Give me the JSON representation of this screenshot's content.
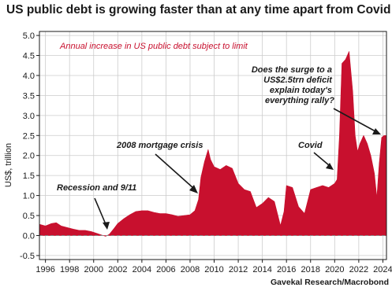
{
  "title": "US public debt is growing faster than at any time apart from Covid",
  "source": "Gavekal Research/Macrobond",
  "chart_data": {
    "type": "area",
    "subtitle": "Annual increase in US public debt subject to limit",
    "ylabel": "US$, trillion",
    "xlabel": "",
    "xlim": [
      1995.5,
      2024.3
    ],
    "ylim": [
      -0.6,
      5.1
    ],
    "yticks": [
      "-0.5",
      "0.0",
      "0.5",
      "1.0",
      "1.5",
      "2.0",
      "2.5",
      "3.0",
      "3.5",
      "4.0",
      "4.5",
      "5.0"
    ],
    "xticks": [
      "1996",
      "1998",
      "2000",
      "2002",
      "2004",
      "2006",
      "2008",
      "2010",
      "2012",
      "2014",
      "2016",
      "2018",
      "2020",
      "2022",
      "2024"
    ],
    "grid": true,
    "colors": {
      "fill": "#c8102e",
      "axis": "#1a1a1a",
      "grid": "#cccccc",
      "zero_line": "#888888"
    },
    "series": [
      {
        "values": [
          [
            1995.5,
            0.28
          ],
          [
            1996.0,
            0.24
          ],
          [
            1996.5,
            0.3
          ],
          [
            1996.9,
            0.32
          ],
          [
            1997.3,
            0.24
          ],
          [
            1997.8,
            0.2
          ],
          [
            1998.3,
            0.16
          ],
          [
            1998.8,
            0.13
          ],
          [
            1999.3,
            0.13
          ],
          [
            1999.8,
            0.1
          ],
          [
            2000.3,
            0.05
          ],
          [
            2000.7,
            0.01
          ],
          [
            2001.0,
            -0.02
          ],
          [
            2001.3,
            0.03
          ],
          [
            2001.7,
            0.18
          ],
          [
            2002.0,
            0.3
          ],
          [
            2002.5,
            0.42
          ],
          [
            2003.0,
            0.52
          ],
          [
            2003.5,
            0.6
          ],
          [
            2004.0,
            0.62
          ],
          [
            2004.5,
            0.62
          ],
          [
            2005.0,
            0.58
          ],
          [
            2005.5,
            0.55
          ],
          [
            2006.0,
            0.55
          ],
          [
            2006.5,
            0.52
          ],
          [
            2007.0,
            0.48
          ],
          [
            2007.5,
            0.5
          ],
          [
            2008.0,
            0.52
          ],
          [
            2008.4,
            0.62
          ],
          [
            2008.7,
            0.9
          ],
          [
            2008.9,
            1.45
          ],
          [
            2009.2,
            1.85
          ],
          [
            2009.5,
            2.15
          ],
          [
            2009.7,
            1.9
          ],
          [
            2010.0,
            1.72
          ],
          [
            2010.5,
            1.65
          ],
          [
            2011.0,
            1.75
          ],
          [
            2011.5,
            1.68
          ],
          [
            2012.0,
            1.3
          ],
          [
            2012.5,
            1.15
          ],
          [
            2013.0,
            1.1
          ],
          [
            2013.5,
            0.7
          ],
          [
            2014.0,
            0.8
          ],
          [
            2014.5,
            0.95
          ],
          [
            2015.0,
            0.85
          ],
          [
            2015.5,
            0.25
          ],
          [
            2015.8,
            0.6
          ],
          [
            2016.0,
            1.25
          ],
          [
            2016.5,
            1.2
          ],
          [
            2017.0,
            0.72
          ],
          [
            2017.5,
            0.55
          ],
          [
            2018.0,
            1.15
          ],
          [
            2018.5,
            1.2
          ],
          [
            2019.0,
            1.25
          ],
          [
            2019.5,
            1.2
          ],
          [
            2020.0,
            1.3
          ],
          [
            2020.2,
            1.4
          ],
          [
            2020.4,
            2.5
          ],
          [
            2020.6,
            4.3
          ],
          [
            2020.9,
            4.4
          ],
          [
            2021.2,
            4.6
          ],
          [
            2021.5,
            3.6
          ],
          [
            2021.7,
            2.5
          ],
          [
            2021.9,
            2.1
          ],
          [
            2022.1,
            2.3
          ],
          [
            2022.4,
            2.5
          ],
          [
            2022.7,
            2.3
          ],
          [
            2023.0,
            2.0
          ],
          [
            2023.3,
            1.55
          ],
          [
            2023.5,
            0.95
          ],
          [
            2023.7,
            1.8
          ],
          [
            2023.9,
            2.45
          ],
          [
            2024.1,
            2.5
          ],
          [
            2024.3,
            2.5
          ]
        ]
      }
    ],
    "annotations": [
      {
        "id": "recession",
        "text": [
          "Recession and 9/11"
        ],
        "x": 2000.9,
        "y": 0.02
      },
      {
        "id": "mortgage",
        "text": [
          "2008 mortgage crisis"
        ],
        "x": 2008.9,
        "y": 1.05
      },
      {
        "id": "covid",
        "text": [
          "Covid"
        ],
        "x": 2020.2,
        "y": 1.6
      },
      {
        "id": "surge",
        "text": [
          "Does the surge to a",
          "US$2.5trn deficit",
          "explain today's",
          "everything rally?"
        ],
        "x": 2023.8,
        "y": 2.45
      }
    ]
  }
}
